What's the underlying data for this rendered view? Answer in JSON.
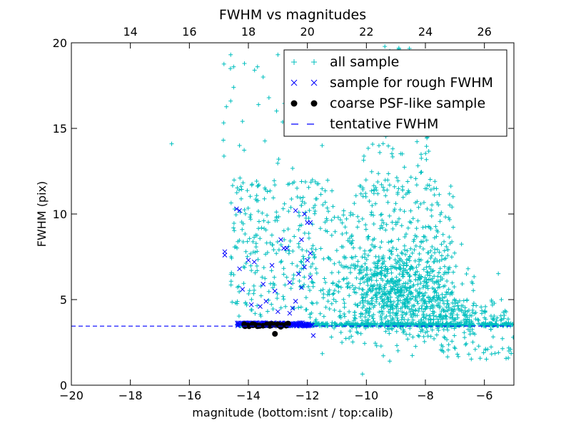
{
  "chart_data": {
    "type": "scatter",
    "title": "FWHM vs magnitudes",
    "xlabel": "magnitude (bottom:isnt / top:calib)",
    "ylabel": "FWHM (pix)",
    "xlim": [
      -20,
      -5
    ],
    "ylim": [
      0,
      20
    ],
    "xticks": [
      -20,
      -18,
      -16,
      -14,
      -12,
      -10,
      -8,
      -6
    ],
    "yticks": [
      0,
      5,
      10,
      15,
      20
    ],
    "top_axis": {
      "offset_from_bottom": 32,
      "ticks": [
        14,
        16,
        18,
        20,
        22,
        24,
        26
      ]
    },
    "grid": false,
    "legend_position": "upper right",
    "colors": {
      "all_sample": "#00bfbf",
      "rough_sample": "#0000ff",
      "psf_sample": "#000000",
      "tentative": "#0000ff"
    },
    "series": [
      {
        "name": "all sample",
        "marker": "plus",
        "clusters": [
          {
            "kind": "band",
            "x": [
              -14.4,
              -5.0
            ],
            "y": [
              3.45,
              3.62
            ],
            "n": 520
          },
          {
            "kind": "blob",
            "cx": -9.0,
            "cy": 5.4,
            "sx": 1.1,
            "sy": 1.4,
            "n": 700
          },
          {
            "kind": "blob",
            "cx": -6.8,
            "cy": 4.1,
            "sx": 0.9,
            "sy": 0.55,
            "n": 160
          },
          {
            "kind": "box",
            "x": [
              -12.0,
              -7.0
            ],
            "y": [
              3.6,
              12.0
            ],
            "n": 400
          },
          {
            "kind": "box",
            "x": [
              -10.2,
              -7.8
            ],
            "y": [
              11.0,
              19.8
            ],
            "n": 80
          },
          {
            "kind": "box",
            "x": [
              -14.6,
              -12.0
            ],
            "y": [
              4.0,
              12.0
            ],
            "n": 230
          },
          {
            "kind": "box",
            "x": [
              -14.9,
              -12.4
            ],
            "y": [
              12.0,
              19.5
            ],
            "n": 22
          },
          {
            "kind": "box",
            "x": [
              -7.5,
              -5.0
            ],
            "y": [
              1.5,
              4.0
            ],
            "n": 60
          },
          {
            "kind": "points",
            "x": [
              -16.6,
              -14.6,
              -14.5,
              -14.5,
              -13.5,
              -13.0,
              -12.6,
              -14.6,
              -14.3,
              -11.5
            ],
            "y": [
              14.1,
              19.3,
              18.6,
              17.4,
              18.0,
              19.3,
              16.0,
              16.6,
              14.0,
              14.0
            ]
          }
        ]
      },
      {
        "name": "sample for rough FWHM",
        "marker": "x",
        "clusters": [
          {
            "kind": "band",
            "x": [
              -14.4,
              -11.8
            ],
            "y": [
              3.45,
              3.65
            ],
            "n": 160
          },
          {
            "kind": "points",
            "x": [
              -14.8,
              -14.8,
              -14.4,
              -14.3,
              -14.3,
              -14.2,
              -13.9,
              -13.5,
              -13.4,
              -13.2,
              -13.1,
              -12.9,
              -12.7,
              -12.6,
              -12.5,
              -12.4,
              -12.3,
              -12.2,
              -12.2,
              -12.1,
              -12.0,
              -12.0,
              -11.9,
              -11.9,
              -13.0,
              -13.6,
              -13.8,
              -12.8,
              -12.4,
              -14.0,
              -11.9,
              -12.6,
              -12.1,
              -11.8
            ],
            "y": [
              7.8,
              7.6,
              10.3,
              10.2,
              6.8,
              5.6,
              4.7,
              5.9,
              4.9,
              7.0,
              5.5,
              8.5,
              8.0,
              6.0,
              4.5,
              10.2,
              6.5,
              8.5,
              5.7,
              10.0,
              9.5,
              7.3,
              7.7,
              6.3,
              4.3,
              4.6,
              7.2,
              8.0,
              4.9,
              7.3,
              9.5,
              4.2,
              6.9,
              2.9
            ]
          }
        ]
      },
      {
        "name": "coarse PSF-like sample",
        "marker": "dot",
        "clusters": [
          {
            "kind": "band",
            "x": [
              -14.3,
              -12.5
            ],
            "y": [
              3.4,
              3.6
            ],
            "n": 26
          },
          {
            "kind": "points",
            "x": [
              -13.1
            ],
            "y": [
              3.0
            ]
          }
        ]
      },
      {
        "name": "tentative FWHM",
        "marker": "dashed-line",
        "y": 3.45
      }
    ]
  }
}
